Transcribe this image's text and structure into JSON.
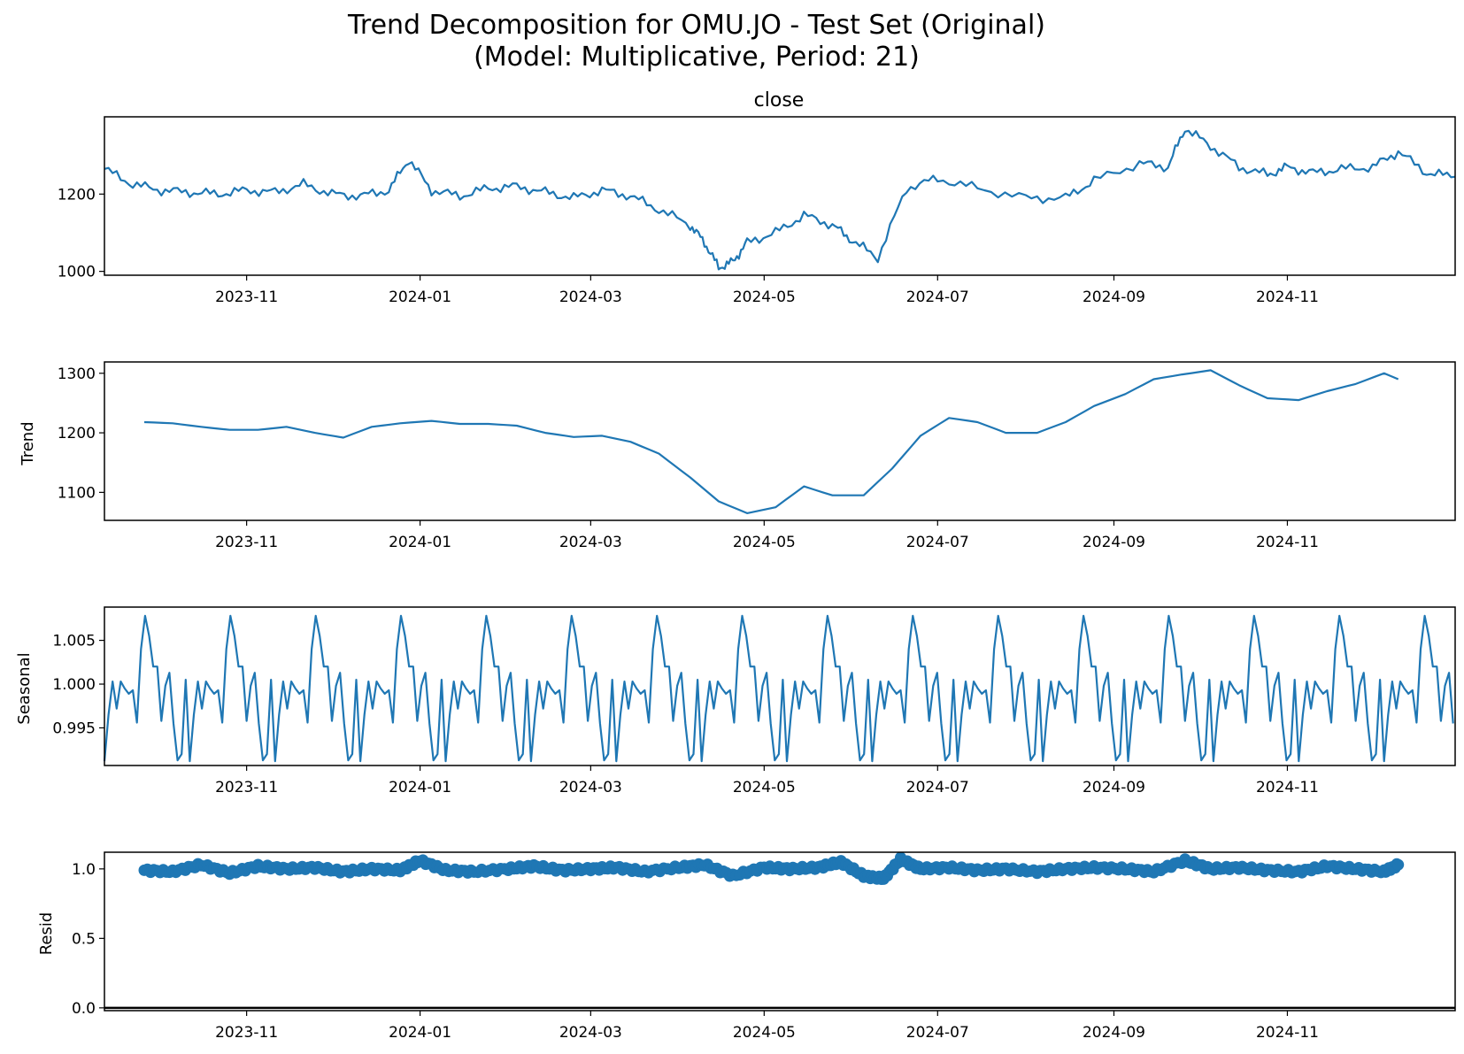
{
  "figure": {
    "title_line1": "Trend Decomposition for OMU.JO - Test Set (Original)",
    "title_line2": "(Model: Multiplicative, Period: 21)",
    "line_color": "#1f77b4"
  },
  "chart_data": [
    {
      "type": "line",
      "title": "close",
      "ylabel": "",
      "xlim": [
        "2023-09-12",
        "2024-12-30"
      ],
      "ylim": [
        990,
        1400
      ],
      "yticks": [
        "1000",
        "1200"
      ],
      "ytick_values": [
        1000,
        1200
      ],
      "xticks": [
        "2023-11",
        "2024-01",
        "2024-03",
        "2024-05",
        "2024-07",
        "2024-09",
        "2024-11"
      ],
      "xtick_values": [
        "2023-11-01",
        "2024-01-01",
        "2024-03-01",
        "2024-05-01",
        "2024-07-01",
        "2024-09-01",
        "2024-11-01"
      ],
      "series": [
        {
          "x": [
            "2023-09-12",
            "2023-09-22",
            "2023-10-02",
            "2023-10-12",
            "2023-10-22",
            "2023-11-01",
            "2023-11-11",
            "2023-11-21",
            "2023-12-01",
            "2023-12-11",
            "2023-12-21",
            "2023-12-28",
            "2024-01-05",
            "2024-01-15",
            "2024-01-25",
            "2024-02-04",
            "2024-02-14",
            "2024-02-24",
            "2024-03-05",
            "2024-03-15",
            "2024-03-25",
            "2024-04-05",
            "2024-04-10",
            "2024-04-15",
            "2024-04-20",
            "2024-04-25",
            "2024-05-05",
            "2024-05-15",
            "2024-05-25",
            "2024-06-01",
            "2024-06-10",
            "2024-06-20",
            "2024-07-01",
            "2024-07-15",
            "2024-08-01",
            "2024-08-15",
            "2024-08-25",
            "2024-09-10",
            "2024-09-20",
            "2024-09-26",
            "2024-10-05",
            "2024-10-15",
            "2024-10-25",
            "2024-11-01",
            "2024-11-10",
            "2024-11-20",
            "2024-12-01",
            "2024-12-10",
            "2024-12-20",
            "2024-12-30"
          ],
          "y": [
            1265,
            1225,
            1210,
            1205,
            1200,
            1210,
            1205,
            1225,
            1200,
            1195,
            1210,
            1290,
            1210,
            1195,
            1215,
            1220,
            1205,
            1190,
            1210,
            1195,
            1160,
            1120,
            1075,
            1010,
            1025,
            1075,
            1100,
            1145,
            1120,
            1080,
            1035,
            1215,
            1240,
            1215,
            1190,
            1190,
            1235,
            1280,
            1270,
            1370,
            1325,
            1270,
            1250,
            1270,
            1255,
            1265,
            1270,
            1310,
            1255,
            1245
          ]
        }
      ]
    },
    {
      "type": "line",
      "title": "",
      "ylabel": "Trend",
      "xlim": [
        "2023-09-12",
        "2024-12-30"
      ],
      "ylim": [
        1053,
        1319
      ],
      "yticks": [
        "1100",
        "1200",
        "1300"
      ],
      "ytick_values": [
        1100,
        1200,
        1300
      ],
      "xticks": [
        "2023-11",
        "2024-01",
        "2024-03",
        "2024-05",
        "2024-07",
        "2024-09",
        "2024-11"
      ],
      "xtick_values": [
        "2023-11-01",
        "2024-01-01",
        "2024-03-01",
        "2024-05-01",
        "2024-07-01",
        "2024-09-01",
        "2024-11-01"
      ],
      "series": [
        {
          "x": [
            "2023-09-26",
            "2023-10-06",
            "2023-10-16",
            "2023-10-26",
            "2023-11-05",
            "2023-11-15",
            "2023-11-25",
            "2023-12-05",
            "2023-12-15",
            "2023-12-25",
            "2024-01-05",
            "2024-01-15",
            "2024-01-25",
            "2024-02-04",
            "2024-02-14",
            "2024-02-24",
            "2024-03-05",
            "2024-03-15",
            "2024-03-25",
            "2024-04-05",
            "2024-04-15",
            "2024-04-25",
            "2024-05-05",
            "2024-05-15",
            "2024-05-25",
            "2024-06-05",
            "2024-06-15",
            "2024-06-25",
            "2024-07-05",
            "2024-07-15",
            "2024-07-25",
            "2024-08-05",
            "2024-08-15",
            "2024-08-25",
            "2024-09-05",
            "2024-09-15",
            "2024-09-25",
            "2024-10-05",
            "2024-10-15",
            "2024-10-25",
            "2024-11-05",
            "2024-11-15",
            "2024-11-25",
            "2024-12-05",
            "2024-12-10"
          ],
          "y": [
            1218,
            1216,
            1210,
            1205,
            1205,
            1210,
            1200,
            1192,
            1210,
            1216,
            1220,
            1215,
            1215,
            1212,
            1200,
            1193,
            1195,
            1185,
            1165,
            1125,
            1085,
            1065,
            1075,
            1110,
            1095,
            1095,
            1140,
            1195,
            1225,
            1218,
            1200,
            1200,
            1218,
            1245,
            1265,
            1290,
            1298,
            1305,
            1280,
            1258,
            1255,
            1270,
            1282,
            1300,
            1290
          ]
        }
      ]
    },
    {
      "type": "line",
      "title": "",
      "ylabel": "Seasonal",
      "xlim": [
        "2023-09-12",
        "2024-12-30"
      ],
      "ylim": [
        0.9907,
        1.0088
      ],
      "yticks": [
        "0.995",
        "1.000",
        "1.005"
      ],
      "ytick_values": [
        0.995,
        1.0,
        1.005
      ],
      "xticks": [
        "2023-11",
        "2024-01",
        "2024-03",
        "2024-05",
        "2024-07",
        "2024-09",
        "2024-11"
      ],
      "xtick_values": [
        "2023-11-01",
        "2024-01-01",
        "2024-03-01",
        "2024-05-01",
        "2024-07-01",
        "2024-09-01",
        "2024-11-01"
      ],
      "series": [
        {
          "x": [],
          "y": [],
          "period_days": 30,
          "period_start": "2023-09-12",
          "pattern": [
            0.9912,
            0.9965,
            1.0003,
            0.9972,
            1.0003,
            0.9995,
            0.9989,
            0.9993,
            0.9956,
            1.004,
            1.0078,
            1.0055,
            1.002,
            1.002,
            0.9958,
            0.9998,
            1.0013,
            0.9955,
            0.9913,
            0.992,
            1.0005
          ]
        }
      ]
    },
    {
      "type": "scatter",
      "title": "",
      "ylabel": "Resid",
      "xlim": [
        "2023-09-12",
        "2024-12-30"
      ],
      "ylim": [
        -0.02,
        1.12
      ],
      "yticks": [
        "0.0",
        "0.5",
        "1.0"
      ],
      "ytick_values": [
        0.0,
        0.5,
        1.0
      ],
      "xticks": [
        "2023-11",
        "2024-01",
        "2024-03",
        "2024-05",
        "2024-07",
        "2024-09",
        "2024-11"
      ],
      "xtick_values": [
        "2023-11-01",
        "2024-01-01",
        "2024-03-01",
        "2024-05-01",
        "2024-07-01",
        "2024-09-01",
        "2024-11-01"
      ],
      "baseline": 0.0,
      "series": [
        {
          "x": [
            "2023-09-26",
            "2023-10-06",
            "2023-10-16",
            "2023-10-26",
            "2023-11-05",
            "2023-11-15",
            "2023-11-25",
            "2023-12-05",
            "2023-12-15",
            "2023-12-25",
            "2024-01-01",
            "2024-01-10",
            "2024-01-20",
            "2024-02-01",
            "2024-02-10",
            "2024-02-20",
            "2024-03-01",
            "2024-03-10",
            "2024-03-20",
            "2024-04-01",
            "2024-04-10",
            "2024-04-20",
            "2024-05-01",
            "2024-05-10",
            "2024-05-20",
            "2024-05-28",
            "2024-06-05",
            "2024-06-12",
            "2024-06-18",
            "2024-06-25",
            "2024-07-05",
            "2024-07-15",
            "2024-07-25",
            "2024-08-05",
            "2024-08-15",
            "2024-08-25",
            "2024-09-05",
            "2024-09-15",
            "2024-09-26",
            "2024-10-05",
            "2024-10-15",
            "2024-10-25",
            "2024-11-05",
            "2024-11-15",
            "2024-11-25",
            "2024-12-05",
            "2024-12-10"
          ],
          "y": [
            0.99,
            0.98,
            1.03,
            0.97,
            1.02,
            1.0,
            1.01,
            0.98,
            1.0,
            0.99,
            1.06,
            0.99,
            0.98,
            1.0,
            1.02,
            0.99,
            1.0,
            1.01,
            0.98,
            1.01,
            1.03,
            0.95,
            1.01,
            1.0,
            1.01,
            1.05,
            0.95,
            0.93,
            1.07,
            1.0,
            1.01,
            0.99,
            1.0,
            0.98,
            1.0,
            1.01,
            1.0,
            0.98,
            1.06,
            1.0,
            1.01,
            0.99,
            0.98,
            1.02,
            1.0,
            0.98,
            1.03
          ]
        }
      ]
    }
  ]
}
